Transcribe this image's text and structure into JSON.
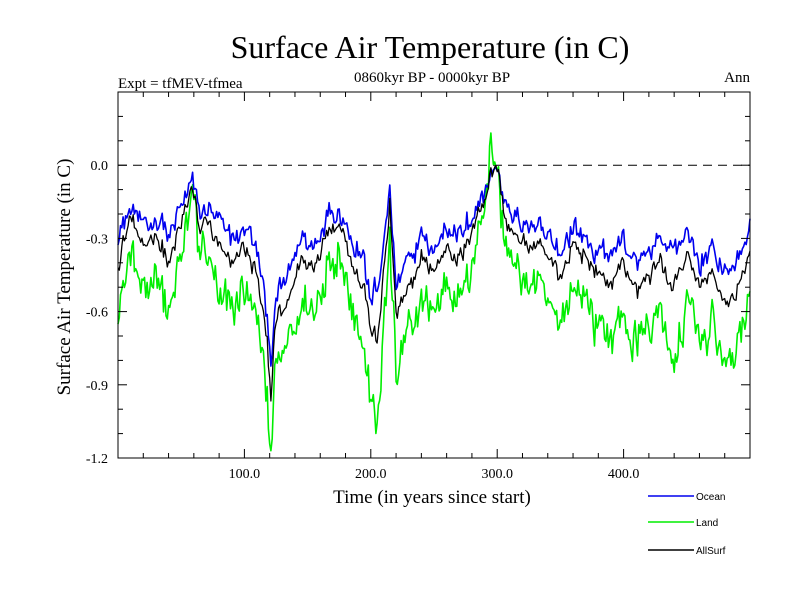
{
  "chart_data": {
    "type": "line",
    "title": "Surface Air Temperature (in C)",
    "subtitle": "0860kyr BP - 0000kyr BP",
    "left_label": "Expt = tfMEV-tfmea",
    "right_label": "Ann",
    "xlabel": "Time (in years since start)",
    "ylabel": "Surface Air Temperature (in C)",
    "xlim": [
      0,
      500
    ],
    "ylim": [
      -1.2,
      0.3
    ],
    "x_ticks": [
      100,
      200,
      300,
      400
    ],
    "x_tick_labels": [
      "100.0",
      "200.0",
      "300.0",
      "400.0"
    ],
    "y_ticks": [
      -1.2,
      -0.9,
      -0.6,
      -0.3,
      0.0
    ],
    "y_tick_labels": [
      "-1.2",
      "-0.9",
      "-0.6",
      "-0.3",
      "0.0"
    ],
    "zero_line": true,
    "legend_position": "bottom-right",
    "keypoints_x": [
      0,
      10,
      20,
      30,
      40,
      50,
      58,
      65,
      70,
      80,
      90,
      100,
      110,
      118,
      121,
      125,
      135,
      145,
      155,
      165,
      175,
      185,
      195,
      200,
      205,
      210,
      215,
      220,
      230,
      240,
      250,
      260,
      270,
      280,
      290,
      295,
      300,
      305,
      310,
      320,
      330,
      340,
      350,
      360,
      370,
      380,
      390,
      400,
      410,
      420,
      430,
      440,
      450,
      460,
      470,
      480,
      490,
      500
    ],
    "series": [
      {
        "name": "Ocean",
        "color": "#0000ee",
        "values": [
          -0.3,
          -0.15,
          -0.25,
          -0.2,
          -0.3,
          -0.18,
          -0.05,
          -0.2,
          -0.15,
          -0.25,
          -0.3,
          -0.25,
          -0.35,
          -0.6,
          -0.82,
          -0.55,
          -0.45,
          -0.3,
          -0.35,
          -0.2,
          -0.18,
          -0.3,
          -0.4,
          -0.55,
          -0.5,
          -0.35,
          -0.1,
          -0.5,
          -0.4,
          -0.3,
          -0.35,
          -0.25,
          -0.3,
          -0.2,
          -0.1,
          -0.05,
          0.0,
          -0.15,
          -0.2,
          -0.25,
          -0.25,
          -0.3,
          -0.35,
          -0.25,
          -0.3,
          -0.35,
          -0.35,
          -0.3,
          -0.4,
          -0.35,
          -0.3,
          -0.35,
          -0.3,
          -0.4,
          -0.35,
          -0.45,
          -0.4,
          -0.25
        ]
      },
      {
        "name": "Land",
        "color": "#00ee00",
        "values": [
          -0.6,
          -0.35,
          -0.55,
          -0.45,
          -0.6,
          -0.4,
          -0.1,
          -0.4,
          -0.3,
          -0.55,
          -0.6,
          -0.5,
          -0.65,
          -0.95,
          -1.15,
          -0.85,
          -0.75,
          -0.55,
          -0.6,
          -0.4,
          -0.35,
          -0.55,
          -0.75,
          -0.95,
          -1.1,
          -0.7,
          -0.3,
          -0.85,
          -0.7,
          -0.55,
          -0.6,
          -0.45,
          -0.55,
          -0.4,
          -0.2,
          0.1,
          0.0,
          -0.3,
          -0.4,
          -0.45,
          -0.5,
          -0.55,
          -0.65,
          -0.5,
          -0.55,
          -0.65,
          -0.7,
          -0.6,
          -0.75,
          -0.65,
          -0.6,
          -0.85,
          -0.55,
          -0.7,
          -0.65,
          -0.8,
          -0.75,
          -0.55
        ]
      },
      {
        "name": "AllSurf",
        "color": "#000000",
        "values": [
          -0.4,
          -0.22,
          -0.35,
          -0.28,
          -0.4,
          -0.25,
          -0.07,
          -0.28,
          -0.2,
          -0.35,
          -0.4,
          -0.33,
          -0.45,
          -0.72,
          -0.92,
          -0.65,
          -0.55,
          -0.38,
          -0.43,
          -0.27,
          -0.24,
          -0.38,
          -0.52,
          -0.68,
          -0.72,
          -0.46,
          -0.17,
          -0.62,
          -0.5,
          -0.38,
          -0.43,
          -0.32,
          -0.39,
          -0.27,
          -0.13,
          -0.02,
          0.0,
          -0.2,
          -0.27,
          -0.32,
          -0.33,
          -0.38,
          -0.45,
          -0.33,
          -0.38,
          -0.45,
          -0.47,
          -0.4,
          -0.52,
          -0.45,
          -0.4,
          -0.5,
          -0.39,
          -0.5,
          -0.45,
          -0.57,
          -0.52,
          -0.35
        ]
      }
    ]
  }
}
